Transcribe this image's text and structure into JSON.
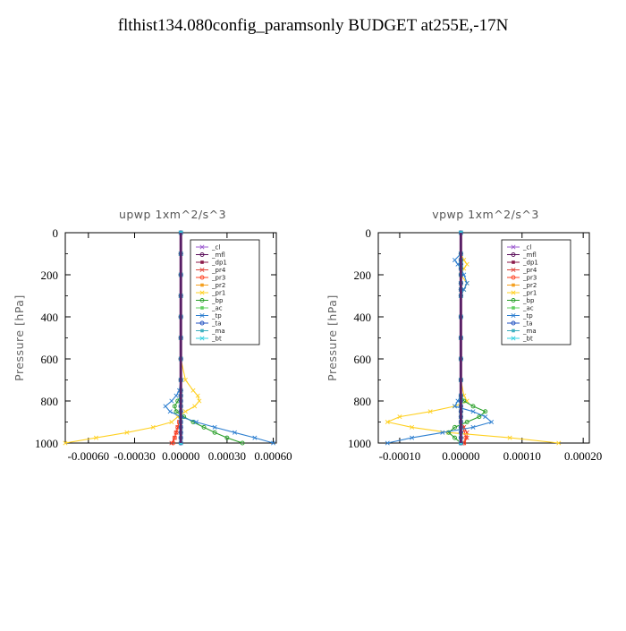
{
  "title": "flthist134.080config_paramsonly  BUDGET at255E,-17N",
  "series_colors": {
    "_cl": "#9b59d0",
    "_mfl": "#5a0d5a",
    "_dp1": "#8b1a4a",
    "_pr4": "#e0443a",
    "_pr3": "#ff4020",
    "_pr2": "#f5a020",
    "_pr1": "#ffd020",
    "_bp": "#2aa02a",
    "_ac": "#60d060",
    "_tp": "#2d7fd0",
    "_ta": "#2050c0",
    "_ma": "#40b0c0",
    "_bt": "#30d0e0"
  },
  "chart_data": [
    {
      "type": "line",
      "title": "upwp   1xm^2/s^3",
      "ylabel": "Pressure [hPa]",
      "xlabel": "",
      "ylim": [
        1000,
        0
      ],
      "xlim": [
        -0.00075,
        0.00062
      ],
      "xticks": [
        -0.0006,
        -0.0003,
        0.0,
        0.0003,
        0.0006
      ],
      "xtick_labels": [
        "-0.00060",
        "-0.00030",
        "0.00000",
        "0.00030",
        "0.00060"
      ],
      "yticks": [
        0,
        200,
        400,
        600,
        800,
        1000
      ],
      "legend_position": "upper-right",
      "pressure": [
        0,
        100,
        200,
        300,
        400,
        500,
        600,
        700,
        750,
        775,
        800,
        825,
        850,
        875,
        900,
        925,
        950,
        975,
        1000
      ],
      "series": [
        {
          "name": "_cl",
          "values": [
            0,
            0,
            0,
            0,
            0,
            0,
            0,
            0,
            0,
            0,
            0,
            0,
            0,
            0,
            0,
            0,
            0,
            0,
            0
          ]
        },
        {
          "name": "_mfl",
          "values": [
            0,
            0,
            0,
            0,
            0,
            0,
            0,
            0,
            0,
            0,
            0,
            0,
            0,
            0,
            0,
            0,
            0,
            0,
            0
          ]
        },
        {
          "name": "_dp1",
          "values": [
            0,
            0,
            0,
            0,
            0,
            0,
            0,
            0,
            0,
            0,
            0,
            0,
            0,
            0,
            0,
            0,
            0,
            0,
            0
          ]
        },
        {
          "name": "_pr4",
          "values": [
            0,
            0,
            0,
            0,
            0,
            0,
            0,
            0,
            0,
            0,
            0,
            0,
            0,
            0,
            -1e-05,
            -2e-05,
            -3e-05,
            -4e-05,
            -6e-05
          ]
        },
        {
          "name": "_pr3",
          "values": [
            0,
            0,
            0,
            0,
            0,
            0,
            0,
            0,
            0,
            0,
            0,
            0,
            0,
            0,
            -1e-05,
            -2e-05,
            -3e-05,
            -4e-05,
            -5e-05
          ]
        },
        {
          "name": "_pr2",
          "values": [
            0,
            0,
            0,
            0,
            0,
            0,
            0,
            0,
            0,
            0,
            0,
            0,
            0,
            0,
            0,
            0,
            0,
            0,
            0
          ]
        },
        {
          "name": "_pr1",
          "values": [
            0,
            0,
            0,
            0,
            0,
            0,
            0,
            3e-05,
            8e-05,
            0.00011,
            0.00012,
            9e-05,
            3e-05,
            -2e-05,
            -6e-05,
            -0.00018,
            -0.00035,
            -0.00055,
            -0.00075
          ]
        },
        {
          "name": "_bp",
          "values": [
            0,
            0,
            0,
            0,
            0,
            0,
            0,
            0,
            0,
            0,
            -2e-05,
            -4e-05,
            -3e-05,
            2e-05,
            8e-05,
            0.00015,
            0.00022,
            0.0003,
            0.0004
          ]
        },
        {
          "name": "_ac",
          "values": [
            0,
            0,
            0,
            0,
            0,
            0,
            0,
            0,
            0,
            0,
            0,
            0,
            0,
            0,
            0,
            0,
            0,
            0,
            0
          ]
        },
        {
          "name": "_tp",
          "values": [
            0,
            0,
            0,
            0,
            0,
            0,
            0,
            0,
            -1e-05,
            -3e-05,
            -6e-05,
            -0.0001,
            -7e-05,
            0,
            0.0001,
            0.00022,
            0.00035,
            0.00048,
            0.0006
          ]
        },
        {
          "name": "_ta",
          "values": [
            0,
            0,
            0,
            0,
            0,
            0,
            0,
            0,
            0,
            0,
            0,
            0,
            0,
            0,
            0,
            0,
            0,
            0,
            0
          ]
        },
        {
          "name": "_ma",
          "values": [
            0,
            0,
            0,
            0,
            0,
            0,
            0,
            0,
            0,
            0,
            0,
            0,
            0,
            0,
            0,
            0,
            0,
            0,
            0
          ]
        },
        {
          "name": "_bt",
          "values": [
            0,
            0,
            0,
            0,
            0,
            0,
            0,
            0,
            0,
            0,
            0,
            0,
            0,
            0,
            0,
            0,
            0,
            0,
            0
          ]
        }
      ]
    },
    {
      "type": "line",
      "title": "vpwp   1xm^2/s^3",
      "ylabel": "Pressure [hPa]",
      "xlabel": "",
      "ylim": [
        1000,
        0
      ],
      "xlim": [
        -0.000135,
        0.00021
      ],
      "xticks": [
        -0.0001,
        0.0,
        0.0001,
        0.0002
      ],
      "xtick_labels": [
        "-0.00010",
        "0.00000",
        "0.00010",
        "0.00020"
      ],
      "yticks": [
        0,
        200,
        400,
        600,
        800,
        1000
      ],
      "legend_position": "upper-right",
      "pressure": [
        0,
        100,
        130,
        150,
        170,
        200,
        240,
        270,
        300,
        400,
        500,
        600,
        700,
        775,
        800,
        825,
        850,
        875,
        900,
        925,
        950,
        975,
        1000
      ],
      "series": [
        {
          "name": "_cl",
          "values": [
            0,
            0,
            0,
            0,
            0,
            0,
            0,
            0,
            0,
            0,
            0,
            0,
            0,
            0,
            0,
            0,
            0,
            0,
            0,
            0,
            0,
            0,
            0
          ]
        },
        {
          "name": "_mfl",
          "values": [
            0,
            0,
            0,
            0,
            0,
            0,
            0,
            0,
            0,
            0,
            0,
            0,
            0,
            0,
            0,
            0,
            0,
            0,
            0,
            0,
            0,
            0,
            0
          ]
        },
        {
          "name": "_dp1",
          "values": [
            0,
            0,
            0,
            0,
            0,
            0,
            0,
            0,
            0,
            0,
            0,
            0,
            0,
            0,
            0,
            0,
            0,
            0,
            0,
            0,
            0,
            0,
            0
          ]
        },
        {
          "name": "_pr4",
          "values": [
            0,
            0,
            0,
            0,
            0,
            0,
            0,
            0,
            0,
            0,
            0,
            0,
            0,
            0,
            0,
            0,
            0,
            0,
            0,
            5e-06,
            1e-05,
            1e-05,
            5e-06
          ]
        },
        {
          "name": "_pr3",
          "values": [
            0,
            0,
            0,
            0,
            0,
            0,
            0,
            0,
            0,
            0,
            0,
            0,
            0,
            0,
            0,
            0,
            0,
            0,
            0,
            3e-06,
            6e-06,
            8e-06,
            5e-06
          ]
        },
        {
          "name": "_pr2",
          "values": [
            0,
            0,
            0,
            0,
            0,
            0,
            0,
            0,
            0,
            0,
            0,
            0,
            0,
            0,
            0,
            0,
            0,
            0,
            0,
            0,
            0,
            0,
            0
          ]
        },
        {
          "name": "_pr1",
          "values": [
            0,
            0,
            5e-06,
            1e-05,
            5e-06,
            0,
            1e-05,
            5e-06,
            0,
            0,
            0,
            0,
            0,
            5e-06,
            1e-05,
            -1e-05,
            -5e-05,
            -0.0001,
            -0.00012,
            -8e-05,
            -2e-05,
            8e-05,
            0.00016
          ]
        },
        {
          "name": "_bp",
          "values": [
            0,
            0,
            0,
            0,
            0,
            0,
            0,
            0,
            0,
            0,
            0,
            0,
            0,
            0,
            5e-06,
            2e-05,
            4e-05,
            3e-05,
            1e-05,
            -1e-05,
            -2e-05,
            -1e-05,
            0
          ]
        },
        {
          "name": "_ac",
          "values": [
            0,
            0,
            0,
            0,
            0,
            0,
            0,
            0,
            0,
            0,
            0,
            0,
            0,
            0,
            0,
            0,
            0,
            0,
            0,
            0,
            0,
            0,
            0
          ]
        },
        {
          "name": "_tp",
          "values": [
            0,
            0,
            -1e-05,
            -5e-06,
            0,
            5e-06,
            1e-05,
            5e-06,
            0,
            0,
            0,
            0,
            0,
            0,
            -5e-06,
            -1e-05,
            2e-05,
            4e-05,
            5e-05,
            2e-05,
            -3e-05,
            -8e-05,
            -0.00012
          ]
        },
        {
          "name": "_ta",
          "values": [
            0,
            0,
            0,
            0,
            0,
            0,
            0,
            0,
            0,
            0,
            0,
            0,
            0,
            0,
            0,
            0,
            0,
            0,
            0,
            0,
            0,
            0,
            0
          ]
        },
        {
          "name": "_ma",
          "values": [
            0,
            0,
            0,
            0,
            0,
            0,
            0,
            0,
            0,
            0,
            0,
            0,
            0,
            0,
            0,
            0,
            0,
            0,
            0,
            0,
            0,
            0,
            0
          ]
        },
        {
          "name": "_bt",
          "values": [
            0,
            0,
            0,
            0,
            0,
            0,
            0,
            0,
            0,
            0,
            0,
            0,
            0,
            0,
            0,
            0,
            0,
            0,
            0,
            0,
            0,
            0,
            0
          ]
        }
      ]
    }
  ]
}
